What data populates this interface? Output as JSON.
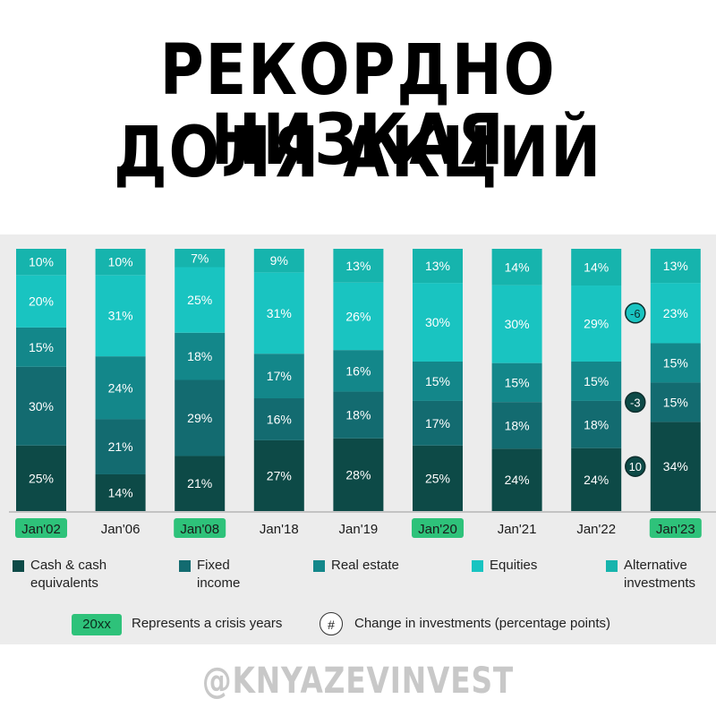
{
  "headline": {
    "line1": "РЕКОРДНО НИЗКАЯ",
    "line2": "ДОЛЯ АКЦИЙ"
  },
  "chart_data": {
    "type": "bar",
    "stacked": true,
    "categories": [
      "Jan'02",
      "Jan'06",
      "Jan'08",
      "Jan'18",
      "Jan'19",
      "Jan'20",
      "Jan'21",
      "Jan'22",
      "Jan'23"
    ],
    "crisis_categories": [
      "Jan'02",
      "Jan'08",
      "Jan'20",
      "Jan'23"
    ],
    "series": [
      {
        "name": "Cash & cash equivalents",
        "color": "#0d4a47",
        "values": [
          25,
          14,
          21,
          27,
          28,
          25,
          24,
          24,
          34
        ]
      },
      {
        "name": "Fixed income",
        "color": "#136b70",
        "values": [
          30,
          21,
          29,
          16,
          18,
          17,
          18,
          18,
          15
        ]
      },
      {
        "name": "Real estate",
        "color": "#13878a",
        "values": [
          15,
          24,
          18,
          17,
          16,
          15,
          15,
          15,
          15
        ]
      },
      {
        "name": "Equities",
        "color": "#19c4c1",
        "values": [
          20,
          31,
          25,
          31,
          26,
          30,
          30,
          29,
          23
        ]
      },
      {
        "name": "Alternative investments",
        "color": "#16b4ad",
        "values": [
          10,
          10,
          7,
          9,
          13,
          13,
          14,
          14,
          13
        ]
      }
    ],
    "changes": [
      {
        "series": "Equities",
        "value": "-6"
      },
      {
        "series": "Fixed income",
        "value": "-3"
      },
      {
        "series": "Cash & cash equivalents",
        "value": "10"
      }
    ],
    "ylim": [
      0,
      100
    ],
    "grid": false,
    "legend_position": "bottom"
  },
  "legend": {
    "items": [
      {
        "label": "Cash & cash\nequivalents",
        "color": "#0d4a47"
      },
      {
        "label": "Fixed\nincome",
        "color": "#136b70"
      },
      {
        "label": "Real estate",
        "color": "#13878a"
      },
      {
        "label": "Equities",
        "color": "#19c4c1"
      },
      {
        "label": "Alternative\ninvestments",
        "color": "#16b4ad"
      }
    ],
    "crisis_sample": "20xx",
    "crisis_text": "Represents a crisis years",
    "change_symbol": "#",
    "change_text": "Change in investments (percentage points)"
  },
  "colors": {
    "crisis_highlight": "#2ec27a",
    "label_text": "#ffffff"
  },
  "handle": "@KNYAZEVINVEST"
}
